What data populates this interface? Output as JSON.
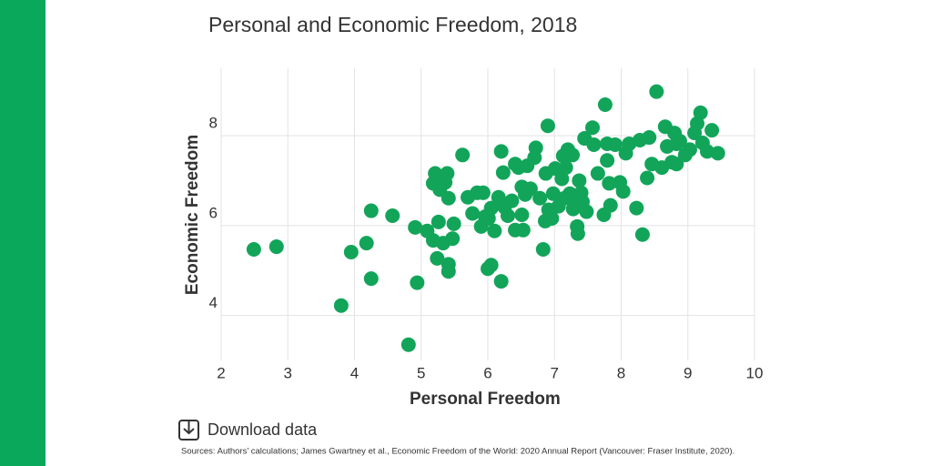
{
  "chart_data": {
    "type": "scatter",
    "title": "Personal and Economic Freedom, 2018",
    "x_label": "Personal Freedom",
    "y_label": "Economic Freedom",
    "color": "#12a55a",
    "grid": true,
    "xlim": [
      2,
      10
    ],
    "xticks": [
      2,
      3,
      4,
      5,
      6,
      7,
      8,
      9,
      10
    ],
    "ylim": [
      3,
      9.5
    ],
    "yticks": [
      4,
      6,
      8
    ],
    "x": [
      2.49,
      2.83,
      3.8,
      3.95,
      4.18,
      4.25,
      4.25,
      4.57,
      4.81,
      4.91,
      4.94,
      5.09,
      5.18,
      5.18,
      5.21,
      5.24,
      5.26,
      5.28,
      5.33,
      5.36,
      5.39,
      5.41,
      5.41,
      5.41,
      5.47,
      5.49,
      5.62,
      5.7,
      5.77,
      5.84,
      5.9,
      5.93,
      5.96,
      6.0,
      6.01,
      6.05,
      6.05,
      6.1,
      6.16,
      6.2,
      6.2,
      6.23,
      6.25,
      6.3,
      6.36,
      6.41,
      6.41,
      6.46,
      6.51,
      6.51,
      6.53,
      6.56,
      6.59,
      6.64,
      6.7,
      6.72,
      6.78,
      6.83,
      6.86,
      6.87,
      6.9,
      6.91,
      6.96,
      6.98,
      7.01,
      7.06,
      7.11,
      7.13,
      7.15,
      7.17,
      7.2,
      7.23,
      7.27,
      7.28,
      7.32,
      7.34,
      7.35,
      7.37,
      7.4,
      7.42,
      7.45,
      7.48,
      7.57,
      7.59,
      7.65,
      7.74,
      7.76,
      7.79,
      7.79,
      7.82,
      7.84,
      7.91,
      7.98,
      8.03,
      8.07,
      8.12,
      8.23,
      8.28,
      8.32,
      8.39,
      8.42,
      8.46,
      8.53,
      8.61,
      8.66,
      8.69,
      8.76,
      8.8,
      8.83,
      8.88,
      8.96,
      9.03,
      9.1,
      9.14,
      9.19,
      9.22,
      9.29,
      9.36,
      9.45,
      8.83
    ],
    "values": [
      5.47,
      5.53,
      4.22,
      5.41,
      5.61,
      6.33,
      4.82,
      6.22,
      3.35,
      5.96,
      4.73,
      5.88,
      5.67,
      6.94,
      7.16,
      5.27,
      6.08,
      6.8,
      5.61,
      6.96,
      7.16,
      4.98,
      5.14,
      6.61,
      5.71,
      6.04,
      7.57,
      6.63,
      6.27,
      6.73,
      5.98,
      6.73,
      6.2,
      5.04,
      6.16,
      5.12,
      6.39,
      5.88,
      6.63,
      4.76,
      7.65,
      7.18,
      6.41,
      6.22,
      6.55,
      7.37,
      5.9,
      7.29,
      6.24,
      6.86,
      5.9,
      6.69,
      7.33,
      6.82,
      7.51,
      7.73,
      6.61,
      5.47,
      6.1,
      7.16,
      8.22,
      6.35,
      6.16,
      6.71,
      7.27,
      6.43,
      7.04,
      7.55,
      6.61,
      7.29,
      7.69,
      6.71,
      7.57,
      6.37,
      6.59,
      5.98,
      5.82,
      7.0,
      6.73,
      6.53,
      7.94,
      6.31,
      8.18,
      7.8,
      7.16,
      6.24,
      8.69,
      7.82,
      7.45,
      6.94,
      6.45,
      7.8,
      6.96,
      6.76,
      7.61,
      7.82,
      6.39,
      7.9,
      5.8,
      7.06,
      7.96,
      7.37,
      8.98,
      7.29,
      8.2,
      7.76,
      7.41,
      8.06,
      7.82,
      7.88,
      7.57,
      7.69,
      8.06,
      8.27,
      8.51,
      7.84,
      7.65,
      8.12,
      7.61,
      7.37
    ]
  },
  "footer": {
    "download": "Download data",
    "source": "Sources: Authors’ calculations; James Gwartney et al., Economic Freedom of the World: 2020 Annual Report (Vancouver: Fraser Institute, 2020)."
  }
}
